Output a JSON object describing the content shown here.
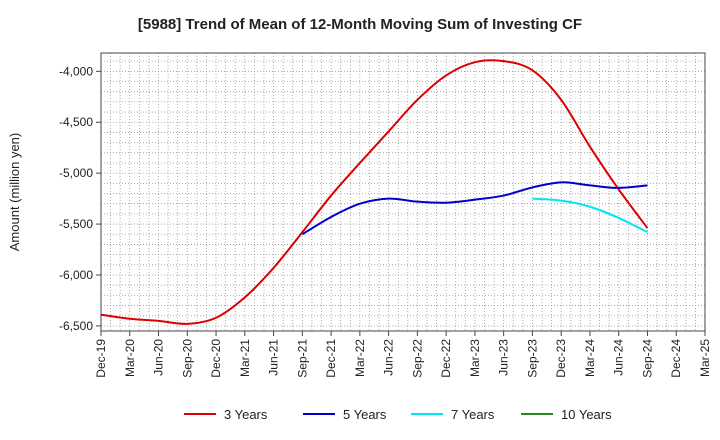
{
  "chart_data": {
    "type": "line",
    "title": "[5988]  Trend of Mean of 12-Month Moving Sum of Investing CF",
    "xlabel": "",
    "ylabel": "Amount (million yen)",
    "ylim": [
      -6550,
      -3820
    ],
    "yticks": [
      -4000,
      -4500,
      -5000,
      -5500,
      -6000,
      -6500
    ],
    "ytick_labels": [
      "-4,000",
      "-4,500",
      "-5,000",
      "-5,500",
      "-6,000",
      "-6,500"
    ],
    "grid": true,
    "legend_position": "bottom",
    "categories": [
      "Dec-19",
      "Mar-20",
      "Jun-20",
      "Sep-20",
      "Dec-20",
      "Mar-21",
      "Jun-21",
      "Sep-21",
      "Dec-21",
      "Mar-22",
      "Jun-22",
      "Sep-22",
      "Dec-22",
      "Mar-23",
      "Jun-23",
      "Sep-23",
      "Dec-23",
      "Mar-24",
      "Jun-24",
      "Sep-24",
      "Dec-24",
      "Mar-25"
    ],
    "series": [
      {
        "name": "3 Years",
        "color": "#dd0000",
        "values": [
          -6390,
          -6430,
          -6450,
          -6480,
          -6420,
          -6220,
          -5930,
          -5580,
          -5220,
          -4900,
          -4590,
          -4280,
          -4040,
          -3910,
          -3900,
          -3990,
          -4280,
          -4740,
          -5160,
          -5540,
          null,
          null
        ]
      },
      {
        "name": "5 Years",
        "color": "#0000cc",
        "values": [
          null,
          null,
          null,
          null,
          null,
          null,
          null,
          -5600,
          -5430,
          -5300,
          -5250,
          -5280,
          -5290,
          -5260,
          -5220,
          -5140,
          -5090,
          -5120,
          -5145,
          -5120,
          null,
          null
        ]
      },
      {
        "name": "7 Years",
        "color": "#00e5ee",
        "values": [
          null,
          null,
          null,
          null,
          null,
          null,
          null,
          null,
          null,
          null,
          null,
          null,
          null,
          null,
          null,
          -5250,
          -5270,
          -5330,
          -5440,
          -5580,
          null,
          null
        ]
      },
      {
        "name": "10 Years",
        "color": "#228b22",
        "values": [
          null,
          null,
          null,
          null,
          null,
          null,
          null,
          null,
          null,
          null,
          null,
          null,
          null,
          null,
          null,
          null,
          null,
          null,
          null,
          null,
          null,
          null
        ]
      }
    ]
  }
}
